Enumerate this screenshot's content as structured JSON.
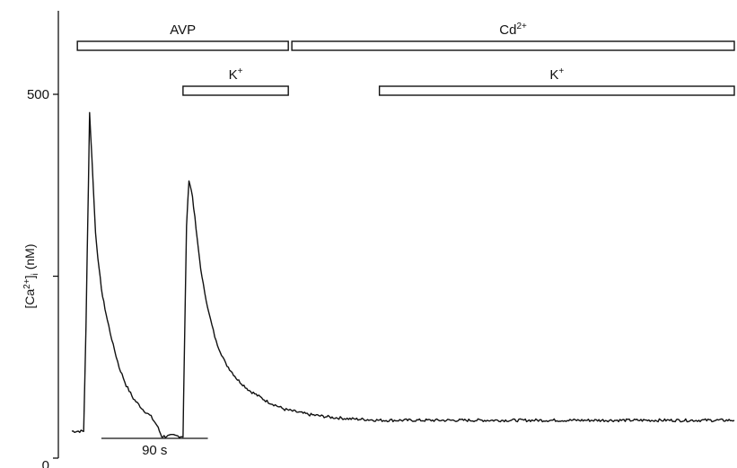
{
  "chart_data": {
    "type": "line",
    "title": "",
    "xlabel": "",
    "ylabel": "[Ca2+]i (nM)",
    "ylabel_parts": {
      "base": "[Ca",
      "sup": "2+",
      "close": "]",
      "sub": "i",
      "unit": " (nM)"
    },
    "ylim": [
      0,
      500
    ],
    "xlim": [
      -10,
      550
    ],
    "x_unit": "s",
    "y_ticks": [
      {
        "value": 0,
        "label": "0"
      },
      {
        "value": 250,
        "label": ""
      },
      {
        "value": 500,
        "label": "500"
      }
    ],
    "grid": false,
    "scale_bar": {
      "label": "90 s",
      "start": 15,
      "end": 105
    },
    "bars": [
      {
        "label": "AVP",
        "sup": "",
        "start": 0,
        "end": 173,
        "level": 1
      },
      {
        "label": "Cd",
        "sup": "2+",
        "start": 176,
        "end": 550,
        "level": 1
      },
      {
        "label": "K",
        "sup": "+",
        "start": 84,
        "end": 173,
        "level": 2
      },
      {
        "label": "K",
        "sup": "+",
        "start": 250,
        "end": 550,
        "level": 2
      }
    ],
    "series": [
      {
        "x": [
          -10,
          0,
          2,
          5,
          8,
          10,
          13,
          16,
          20,
          25,
          30,
          36,
          42,
          50,
          57,
          62,
          66,
          70,
          76,
          82,
          84,
          85,
          87,
          89,
          92,
          96,
          100,
          106,
          112,
          120,
          130,
          140,
          155,
          170,
          190,
          210,
          225,
          240,
          250,
          258,
          265,
          275,
          285,
          295,
          310,
          330,
          350,
          370,
          390,
          410,
          430,
          450,
          470,
          490,
          510,
          530,
          550
        ],
        "y": [
          37,
          37,
          180,
          475,
          380,
          310,
          260,
          222,
          190,
          155,
          125,
          100,
          82,
          67,
          57,
          45,
          30,
          30,
          31,
          30,
          30,
          130,
          320,
          383,
          360,
          300,
          248,
          198,
          160,
          130,
          108,
          93,
          78,
          67,
          60,
          56,
          54,
          53,
          52,
          52,
          52,
          52,
          52,
          52,
          52,
          52,
          52,
          52,
          52,
          52,
          52,
          52,
          52,
          52,
          52,
          52,
          52
        ]
      }
    ],
    "trace_color": "#111111"
  }
}
